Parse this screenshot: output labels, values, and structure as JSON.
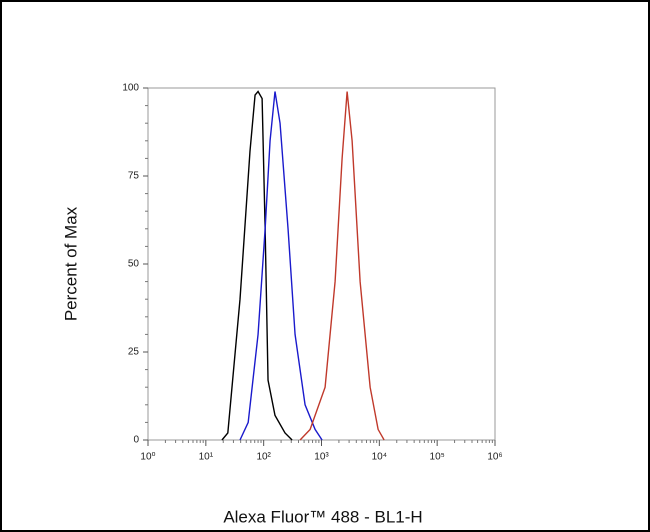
{
  "chart_data": {
    "type": "line",
    "xlabel": "Alexa Fluor™ 488 - BL1-H",
    "ylabel": "Percent of Max",
    "xscale": "log",
    "xlim": [
      1,
      1000000
    ],
    "xticks": [
      {
        "value": 1,
        "label": "10⁰"
      },
      {
        "value": 10,
        "label": "10¹"
      },
      {
        "value": 100,
        "label": "10²"
      },
      {
        "value": 1000,
        "label": "10³"
      },
      {
        "value": 10000,
        "label": "10⁴"
      },
      {
        "value": 100000,
        "label": "10⁵"
      },
      {
        "value": 1000000,
        "label": "10⁶"
      }
    ],
    "ylim": [
      0,
      100
    ],
    "yticks": [
      0,
      25,
      50,
      75,
      100
    ],
    "series": [
      {
        "color": "#000000",
        "x": [
          19,
          24,
          39,
          58,
          71,
          80,
          94,
          106,
          119,
          157,
          234,
          310
        ],
        "values": [
          0,
          2,
          40,
          82,
          98,
          99,
          97,
          60,
          17,
          7,
          2,
          0
        ]
      },
      {
        "color": "#1a1acc",
        "x": [
          39,
          54,
          80,
          106,
          129,
          157,
          192,
          264,
          349,
          520,
          775,
          1023
        ],
        "values": [
          0,
          5,
          30,
          60,
          85,
          99,
          90,
          60,
          30,
          10,
          3,
          0
        ]
      },
      {
        "color": "#c0392b",
        "x": [
          426,
          635,
          1154,
          1718,
          2271,
          2773,
          3383,
          4652,
          6934,
          9530,
          12100
        ],
        "values": [
          0,
          3,
          15,
          45,
          80,
          99,
          85,
          45,
          15,
          3,
          0
        ]
      }
    ]
  }
}
